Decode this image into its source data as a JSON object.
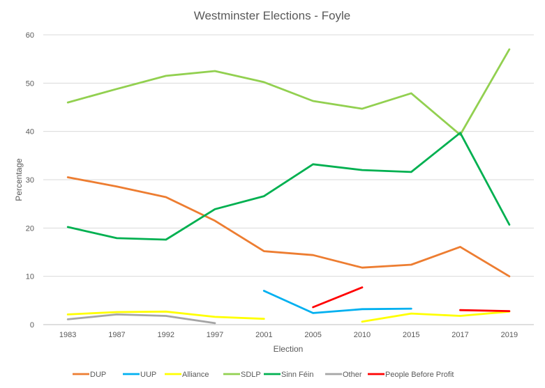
{
  "chart_data": {
    "type": "line",
    "title": "Westminster Elections - Foyle",
    "xlabel": "Election",
    "ylabel": "Percentage",
    "ylim": [
      0,
      60
    ],
    "yticks": [
      0,
      10,
      20,
      30,
      40,
      50,
      60
    ],
    "grid": true,
    "legend": "bottom",
    "categories": [
      "1983",
      "1987",
      "1992",
      "1997",
      "2001",
      "2005",
      "2010",
      "2015",
      "2017",
      "2019"
    ],
    "series": [
      {
        "name": "DUP",
        "color": "#ED7D31",
        "values": [
          30.5,
          28.6,
          26.4,
          21.5,
          15.2,
          14.4,
          11.8,
          12.4,
          16.1,
          10.0
        ]
      },
      {
        "name": "UUP",
        "color": "#00B0F0",
        "values": [
          null,
          null,
          null,
          null,
          7.0,
          2.4,
          3.2,
          3.3,
          null,
          null
        ]
      },
      {
        "name": "Alliance",
        "color": "#FFFF00",
        "values": [
          2.1,
          2.6,
          2.7,
          1.6,
          1.2,
          null,
          0.6,
          2.3,
          1.8,
          2.7
        ]
      },
      {
        "name": "SDLP",
        "color": "#92D050",
        "values": [
          46.0,
          48.8,
          51.5,
          52.5,
          50.2,
          46.3,
          44.7,
          47.9,
          39.3,
          57.0
        ]
      },
      {
        "name": "Sinn Féin",
        "color": "#00B050",
        "values": [
          20.2,
          17.9,
          17.6,
          23.9,
          26.6,
          33.2,
          32.0,
          31.6,
          39.7,
          20.7
        ]
      },
      {
        "name": "Other",
        "color": "#A5A5A5",
        "values": [
          1.1,
          2.1,
          1.8,
          0.3,
          null,
          null,
          null,
          null,
          null,
          null
        ]
      },
      {
        "name": "People Before Profit",
        "color": "#FF0000",
        "values": [
          null,
          null,
          null,
          null,
          null,
          3.6,
          7.7,
          null,
          3.0,
          2.8
        ]
      }
    ]
  }
}
